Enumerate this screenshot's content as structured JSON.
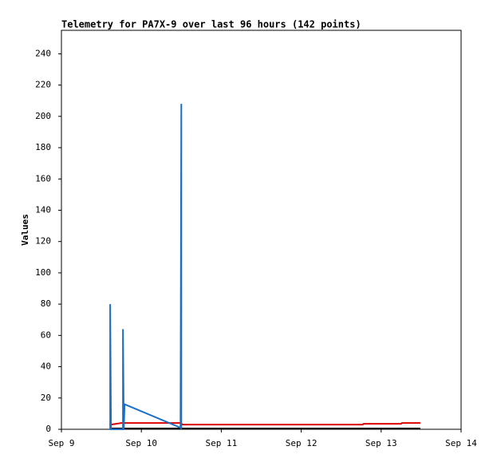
{
  "chart_data": {
    "type": "line",
    "title": "Telemetry for PA7X-9 over last 96 hours (142 points)",
    "y_label": "Values",
    "xlim": [
      9,
      14
    ],
    "xticks": [
      {
        "value": 9,
        "label": "Sep 9"
      },
      {
        "value": 10,
        "label": "Sep 10"
      },
      {
        "value": 11,
        "label": "Sep 11"
      },
      {
        "value": 12,
        "label": "Sep 12"
      },
      {
        "value": 13,
        "label": "Sep 13"
      },
      {
        "value": 14,
        "label": "Sep 14"
      }
    ],
    "ylim": [
      0,
      255
    ],
    "yticks": [
      0,
      20,
      40,
      60,
      80,
      100,
      120,
      140,
      160,
      180,
      200,
      220,
      240
    ],
    "series": [
      {
        "color": "#000000",
        "x": [
          9.61,
          13.49
        ],
        "values": [
          0.5,
          0.5
        ]
      },
      {
        "color": "#dd0000",
        "x": [
          9.62,
          9.75,
          10.5,
          10.51,
          12.77,
          12.78,
          13.25,
          13.26,
          13.49
        ],
        "values": [
          3,
          4,
          4,
          3,
          3,
          3.5,
          3.5,
          4,
          4
        ]
      },
      {
        "color": "#1a6fc4",
        "x": [
          9.61,
          9.61,
          9.62,
          9.77,
          9.77,
          9.78,
          9.79,
          10.49,
          10.5,
          10.5
        ],
        "values": [
          0,
          80,
          0,
          0,
          64,
          0,
          16,
          1,
          208,
          0
        ]
      }
    ]
  }
}
